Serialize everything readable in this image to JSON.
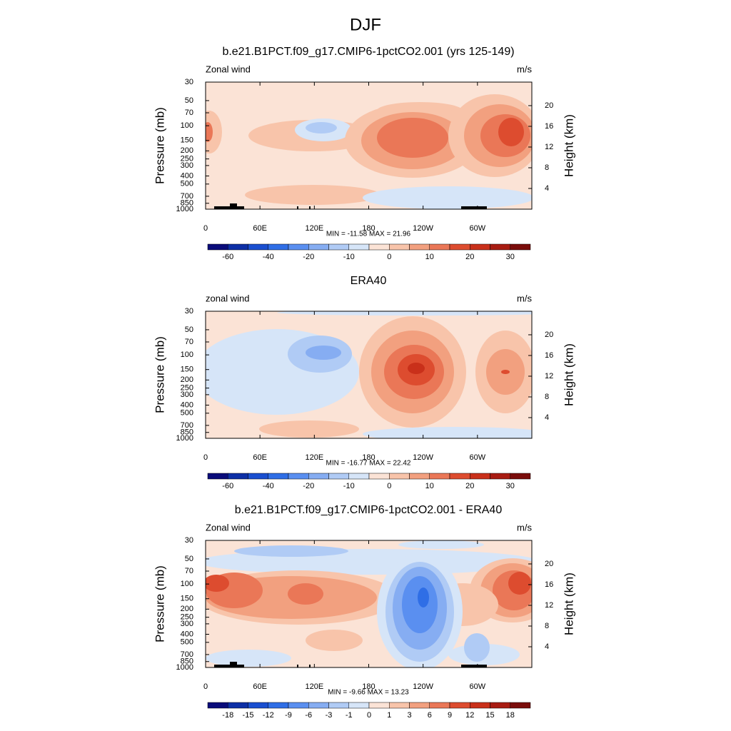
{
  "figure_title": "DJF",
  "chart_data": [
    {
      "type": "contour",
      "title": "b.e21.B1PCT.f09_g17.CMIP6-1pctCO2.001 (yrs 125-149)",
      "left_label": "Zonal wind",
      "units_label": "m/s",
      "ylabel": "Pressure (mb)",
      "y2label": "Height (km)",
      "log_y": true,
      "ylim": [
        1000,
        30
      ],
      "yticks": [
        30,
        50,
        70,
        100,
        150,
        200,
        250,
        300,
        400,
        500,
        700,
        850,
        1000
      ],
      "y2ticks": [
        4,
        8,
        12,
        16,
        20
      ],
      "xlim": [
        0,
        360
      ],
      "xticks": [
        0,
        {
          "value": 60,
          "label": "60E"
        },
        {
          "value": 120,
          "label": "120E"
        },
        180,
        {
          "value": 240,
          "label": "120W"
        },
        {
          "value": 300,
          "label": "60W"
        }
      ],
      "stats": "MIN = -11.58  MAX =  21.96",
      "colorbar": {
        "colors": [
          "#0a0c7a",
          "#0d2fa6",
          "#1a4fd0",
          "#2f6ee6",
          "#5a8ff0",
          "#86adf2",
          "#b0cbf5",
          "#d6e5f8",
          "#fbe3d6",
          "#f8c4aa",
          "#f2a07f",
          "#ea7757",
          "#dd4c2f",
          "#c9301a",
          "#a81c12",
          "#7a0d0b"
        ],
        "ticks": [
          -60,
          -40,
          -20,
          -10,
          0,
          10,
          20,
          30
        ]
      }
    },
    {
      "type": "contour",
      "title": "ERA40",
      "left_label": "zonal wind",
      "units_label": "m/s",
      "ylabel": "Pressure (mb)",
      "y2label": "Height (km)",
      "log_y": true,
      "ylim": [
        1000,
        30
      ],
      "yticks": [
        30,
        50,
        70,
        100,
        150,
        200,
        250,
        300,
        400,
        500,
        700,
        850,
        1000
      ],
      "y2ticks": [
        4,
        8,
        12,
        16,
        20
      ],
      "xlim": [
        0,
        360
      ],
      "xticks": [
        0,
        {
          "value": 60,
          "label": "60E"
        },
        {
          "value": 120,
          "label": "120E"
        },
        180,
        {
          "value": 240,
          "label": "120W"
        },
        {
          "value": 300,
          "label": "60W"
        }
      ],
      "stats": "MIN = -16.77  MAX =  22.42",
      "colorbar": {
        "colors": [
          "#0a0c7a",
          "#0d2fa6",
          "#1a4fd0",
          "#2f6ee6",
          "#5a8ff0",
          "#86adf2",
          "#b0cbf5",
          "#d6e5f8",
          "#fbe3d6",
          "#f8c4aa",
          "#f2a07f",
          "#ea7757",
          "#dd4c2f",
          "#c9301a",
          "#a81c12",
          "#7a0d0b"
        ],
        "ticks": [
          -60,
          -40,
          -20,
          -10,
          0,
          10,
          20,
          30
        ]
      }
    },
    {
      "type": "contour",
      "title": "b.e21.B1PCT.f09_g17.CMIP6-1pctCO2.001 - ERA40",
      "left_label": "Zonal wind",
      "units_label": "m/s",
      "ylabel": "Pressure (mb)",
      "y2label": "Height (km)",
      "log_y": true,
      "ylim": [
        1000,
        30
      ],
      "yticks": [
        30,
        50,
        70,
        100,
        150,
        200,
        250,
        300,
        400,
        500,
        700,
        850,
        1000
      ],
      "y2ticks": [
        4,
        8,
        12,
        16,
        20
      ],
      "xlim": [
        0,
        360
      ],
      "xticks": [
        0,
        {
          "value": 60,
          "label": "60E"
        },
        {
          "value": 120,
          "label": "120E"
        },
        180,
        {
          "value": 240,
          "label": "120W"
        },
        {
          "value": 300,
          "label": "60W"
        }
      ],
      "stats": "MIN = -9.66  MAX =  13.23",
      "colorbar": {
        "colors": [
          "#0a0c7a",
          "#0d2fa6",
          "#1a4fd0",
          "#2f6ee6",
          "#5a8ff0",
          "#86adf2",
          "#b0cbf5",
          "#d6e5f8",
          "#fbe3d6",
          "#f8c4aa",
          "#f2a07f",
          "#ea7757",
          "#dd4c2f",
          "#c9301a",
          "#a81c12",
          "#7a0d0b"
        ],
        "ticks": [
          -18,
          -15,
          -12,
          -9,
          -6,
          -3,
          -1,
          0,
          1,
          3,
          6,
          9,
          12,
          15,
          18
        ]
      }
    }
  ]
}
